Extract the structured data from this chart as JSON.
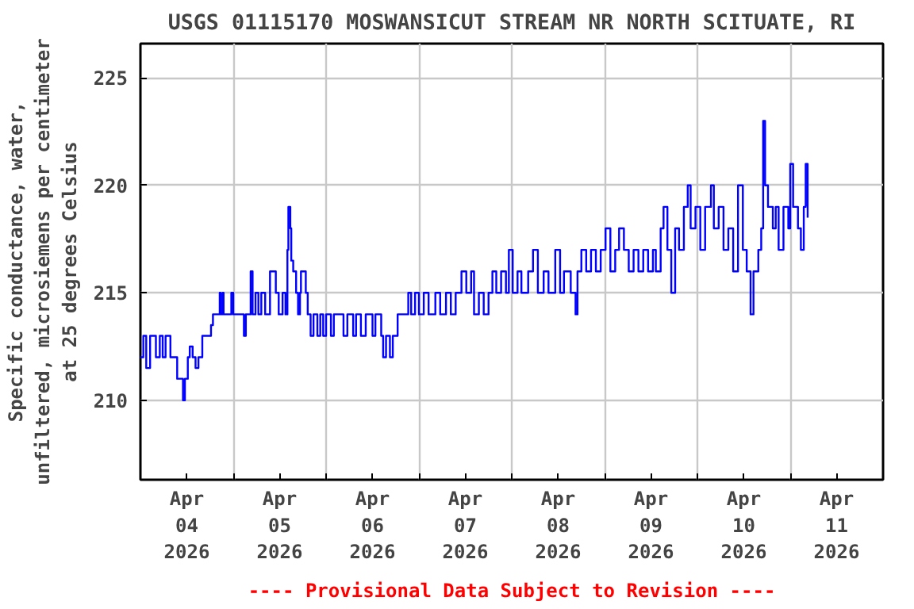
{
  "chart_data": {
    "type": "step",
    "title": "USGS 01115170 MOSWANSICUT STREAM NR NORTH SCITUATE, RI",
    "ylabel": "Specific conductance, water,\nunfiltered, microsiemens per centimeter\nat 25 degrees Celsius",
    "annotations": [
      "---- Provisional Data Subject to Revision ----"
    ],
    "xlim": [
      "2026-04-04T00:00",
      "2026-04-12T00:00"
    ],
    "xticks": [
      {
        "value": "2026-04-04T12:00",
        "label": "Apr\n04\n2026"
      },
      {
        "value": "2026-04-05T12:00",
        "label": "Apr\n05\n2026"
      },
      {
        "value": "2026-04-06T12:00",
        "label": "Apr\n06\n2026"
      },
      {
        "value": "2026-04-07T12:00",
        "label": "Apr\n07\n2026"
      },
      {
        "value": "2026-04-08T12:00",
        "label": "Apr\n08\n2026"
      },
      {
        "value": "2026-04-09T12:00",
        "label": "Apr\n09\n2026"
      },
      {
        "value": "2026-04-10T12:00",
        "label": "Apr\n10\n2026"
      },
      {
        "value": "2026-04-11T12:00",
        "label": "Apr\n11\n2026"
      },
      {
        "value": "2026-04-05T00:00",
        "label": null
      },
      {
        "value": "2026-04-06T00:00",
        "label": null
      },
      {
        "value": "2026-04-07T00:00",
        "label": null
      },
      {
        "value": "2026-04-08T00:00",
        "label": null
      },
      {
        "value": "2026-04-09T00:00",
        "label": null
      },
      {
        "value": "2026-04-10T00:00",
        "label": null
      },
      {
        "value": "2026-04-11T00:00",
        "label": null
      }
    ],
    "ylim": [
      206.3,
      226.6
    ],
    "yticks": [
      210,
      215,
      220,
      225
    ],
    "grid": true,
    "line_style": "solid",
    "series": [
      {
        "color": "#0000ff",
        "x": [
          "2026-04-04T00:00",
          "2026-04-04T00:45",
          "2026-04-04T01:30",
          "2026-04-04T02:30",
          "2026-04-04T04:00",
          "2026-04-04T05:00",
          "2026-04-04T05:45",
          "2026-04-04T06:30",
          "2026-04-04T07:45",
          "2026-04-04T09:30",
          "2026-04-04T10:30",
          "2026-04-04T11:00",
          "2026-04-04T11:30",
          "2026-04-04T12:15",
          "2026-04-04T12:45",
          "2026-04-04T13:30",
          "2026-04-04T14:15",
          "2026-04-04T15:00",
          "2026-04-04T16:00",
          "2026-04-04T18:00",
          "2026-04-04T18:15",
          "2026-04-04T18:45",
          "2026-04-04T20:00",
          "2026-04-04T20:30",
          "2026-04-04T20:45",
          "2026-04-04T21:15",
          "2026-04-04T21:30",
          "2026-04-04T23:30",
          "2026-04-05T00:00",
          "2026-04-05T02:30",
          "2026-04-05T02:45",
          "2026-04-05T03:15",
          "2026-04-05T04:30",
          "2026-04-05T05:00",
          "2026-04-05T05:45",
          "2026-04-05T06:30",
          "2026-04-05T07:15",
          "2026-04-05T08:15",
          "2026-04-05T09:30",
          "2026-04-05T10:30",
          "2026-04-05T11:00",
          "2026-04-05T11:45",
          "2026-04-05T12:45",
          "2026-04-05T13:30",
          "2026-04-05T14:00",
          "2026-04-05T14:15",
          "2026-04-05T14:45",
          "2026-04-05T15:00",
          "2026-04-05T15:30",
          "2026-04-05T16:15",
          "2026-04-05T16:45",
          "2026-04-05T17:15",
          "2026-04-05T17:30",
          "2026-04-05T18:30",
          "2026-04-05T18:45",
          "2026-04-05T19:15",
          "2026-04-05T20:00",
          "2026-04-05T20:45",
          "2026-04-05T21:45",
          "2026-04-05T22:30",
          "2026-04-05T23:15",
          "2026-04-06T00:00",
          "2026-04-06T01:15",
          "2026-04-06T02:00",
          "2026-04-06T03:45",
          "2026-04-06T04:30",
          "2026-04-06T05:30",
          "2026-04-06T07:00",
          "2026-04-06T07:45",
          "2026-04-06T09:00",
          "2026-04-06T10:15",
          "2026-04-06T12:00",
          "2026-04-06T12:45",
          "2026-04-06T14:15",
          "2026-04-06T14:45",
          "2026-04-06T15:30",
          "2026-04-06T16:30",
          "2026-04-06T17:15",
          "2026-04-06T18:30",
          "2026-04-06T20:00",
          "2026-04-06T21:15",
          "2026-04-06T22:00",
          "2026-04-06T23:00",
          "2026-04-07T00:00",
          "2026-04-07T01:15",
          "2026-04-07T02:30",
          "2026-04-07T04:15",
          "2026-04-07T05:30",
          "2026-04-07T07:00",
          "2026-04-07T08:15",
          "2026-04-07T09:30",
          "2026-04-07T11:00",
          "2026-04-07T12:15",
          "2026-04-07T13:30",
          "2026-04-07T14:15",
          "2026-04-07T15:30",
          "2026-04-07T16:45",
          "2026-04-07T18:00",
          "2026-04-07T19:00",
          "2026-04-07T20:00",
          "2026-04-07T21:15",
          "2026-04-07T22:30",
          "2026-04-07T23:15",
          "2026-04-08T00:15",
          "2026-04-08T01:30",
          "2026-04-08T02:30",
          "2026-04-08T04:15",
          "2026-04-08T05:30",
          "2026-04-08T06:45",
          "2026-04-08T08:15",
          "2026-04-08T09:30",
          "2026-04-08T11:15",
          "2026-04-08T12:30",
          "2026-04-08T13:30",
          "2026-04-08T15:15",
          "2026-04-08T16:30",
          "2026-04-08T17:00",
          "2026-04-08T18:00",
          "2026-04-08T19:15",
          "2026-04-08T20:30",
          "2026-04-08T21:45",
          "2026-04-08T23:00",
          "2026-04-09T00:15",
          "2026-04-09T01:30",
          "2026-04-09T02:45",
          "2026-04-09T03:45",
          "2026-04-09T05:00",
          "2026-04-09T06:15",
          "2026-04-09T07:30",
          "2026-04-09T08:45",
          "2026-04-09T10:00",
          "2026-04-09T11:15",
          "2026-04-09T12:30",
          "2026-04-09T13:15",
          "2026-04-09T14:30",
          "2026-04-09T15:15",
          "2026-04-09T16:15",
          "2026-04-09T17:15",
          "2026-04-09T18:15",
          "2026-04-09T19:15",
          "2026-04-09T20:30",
          "2026-04-09T21:30",
          "2026-04-09T22:15",
          "2026-04-09T23:30",
          "2026-04-10T00:45",
          "2026-04-10T02:00",
          "2026-04-10T03:30",
          "2026-04-10T04:15",
          "2026-04-10T05:30",
          "2026-04-10T06:45",
          "2026-04-10T08:00",
          "2026-04-10T09:15",
          "2026-04-10T10:30",
          "2026-04-10T11:45",
          "2026-04-10T12:45",
          "2026-04-10T13:45",
          "2026-04-10T14:30",
          "2026-04-10T15:45",
          "2026-04-10T16:30",
          "2026-04-10T17:00",
          "2026-04-10T17:30",
          "2026-04-10T18:15",
          "2026-04-10T19:30",
          "2026-04-10T20:15",
          "2026-04-10T21:00",
          "2026-04-10T22:15",
          "2026-04-10T23:30",
          "2026-04-11T00:00",
          "2026-04-11T00:45",
          "2026-04-11T02:00",
          "2026-04-11T02:45",
          "2026-04-11T03:30",
          "2026-04-11T04:00",
          "2026-04-11T04:30"
        ],
        "values": [
          212,
          213,
          211.5,
          213,
          212,
          213,
          212,
          213,
          212,
          211,
          211,
          210,
          211,
          212,
          212.5,
          212,
          211.5,
          212,
          213,
          213,
          213.5,
          214,
          214,
          215,
          214,
          215,
          214,
          215,
          214,
          214,
          213,
          214,
          216,
          214,
          215,
          214,
          215,
          214,
          216,
          216,
          215,
          214,
          215,
          214,
          217,
          219,
          218,
          216.5,
          216,
          215,
          214,
          215,
          216,
          216,
          215,
          214,
          213,
          214,
          213,
          214,
          213,
          214,
          213,
          214,
          214,
          213,
          214,
          213,
          214,
          213,
          214,
          213,
          214,
          213,
          212,
          213,
          212,
          213,
          214,
          214,
          215,
          214,
          215,
          214,
          215,
          214,
          215,
          214,
          215,
          214,
          215,
          216,
          215,
          216,
          214,
          215,
          214,
          215,
          216,
          215,
          216,
          215,
          217,
          215,
          216,
          215,
          216,
          217,
          215,
          216,
          215,
          217,
          215,
          216,
          215,
          214,
          216,
          217,
          216,
          217,
          216,
          217,
          218,
          216,
          217,
          218,
          217,
          216,
          217,
          216,
          217,
          216,
          217,
          216,
          218,
          219,
          217,
          215,
          218,
          217,
          219,
          220,
          218,
          219,
          217,
          219,
          220,
          218,
          219,
          217,
          218,
          216,
          220,
          217,
          216,
          214,
          216,
          217,
          218,
          223,
          220,
          219,
          218,
          219,
          217,
          219,
          218,
          221,
          219,
          218,
          217,
          219,
          221,
          218.5
        ]
      }
    ]
  }
}
